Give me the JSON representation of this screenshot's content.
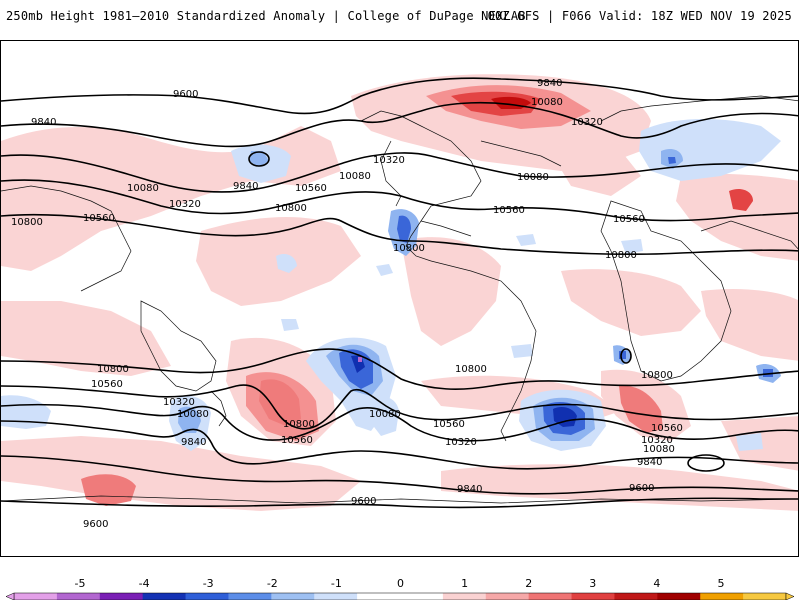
{
  "header": {
    "title_left": "250mb Height 1981–2010 Standardized Anomaly | College of DuPage NEXLAB",
    "title_right": "00Z GFS | F066 Valid: 18Z WED NOV 19 2025"
  },
  "contour_labels": [
    "9600",
    "9840",
    "10080",
    "10320",
    "10560",
    "10800"
  ],
  "map_labels": {
    "l1": "9600",
    "l2": "9840",
    "l3": "10080",
    "l4": "10320",
    "l5": "10560",
    "l6": "10800",
    "l7": "9840",
    "l8": "10080",
    "l9": "10320",
    "l10": "10560",
    "l11": "10800",
    "l12": "10320",
    "l13": "10080",
    "l14": "9840",
    "l15": "10080",
    "l16": "10320",
    "l17": "10560",
    "l18": "10080",
    "l19": "10800",
    "l20": "10560",
    "l21": "10800",
    "l22": "10800",
    "l23": "10560",
    "l24": "10320",
    "l25": "10080",
    "l26": "9840",
    "l27": "10800",
    "l28": "10560",
    "l29": "10080",
    "l30": "10320",
    "l31": "10800",
    "l32": "10560",
    "l33": "10320",
    "l34": "10080",
    "l35": "9840",
    "l36": "9840",
    "l37": "9600",
    "l38": "9600",
    "l39": "9600",
    "l40": "10800",
    "l41": "10560",
    "l42": "10320",
    "l43": "10080",
    "l44": "9840",
    "l45": "10800"
  },
  "colorbar": {
    "ticks": [
      "-5",
      "-4",
      "-3",
      "-2",
      "-1",
      "0",
      "1",
      "2",
      "3",
      "4",
      "5"
    ],
    "colors": [
      "#e3a0e8",
      "#b266d0",
      "#7a1fb5",
      "#1432b4",
      "#2f5fd8",
      "#5c8de8",
      "#9ec0f2",
      "#cfe0fa",
      "#ffffff",
      "#ffffff",
      "#fad2d2",
      "#f6a8a8",
      "#ef7474",
      "#e04040",
      "#c01818",
      "#a00000",
      "#f0a000",
      "#f6c840"
    ]
  },
  "colors": {
    "pos_light": "#fad2d2",
    "pos_mid": "#f48c8c",
    "pos_strong": "#e23b3b",
    "pos_max": "#c00000",
    "neg_light": "#cfe0fa",
    "neg_mid": "#8fb4f0",
    "neg_strong": "#3a66d8",
    "neg_max": "#1030b0"
  }
}
